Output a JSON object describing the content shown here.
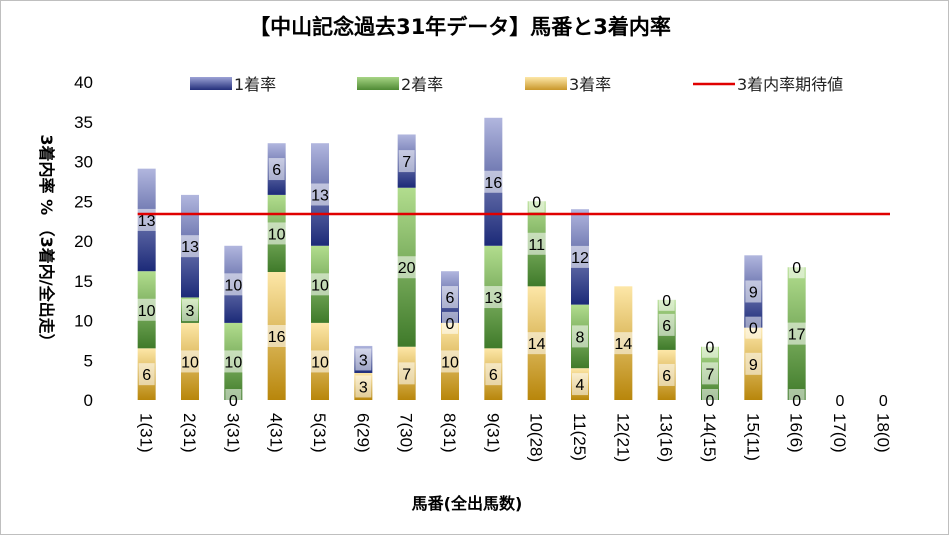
{
  "chart_data": {
    "type": "bar",
    "stacked": true,
    "title": "【中山記念過去31年データ】馬番と3着内率",
    "xlabel": "馬番(全出馬数)",
    "ylabel": "3着内率 %  （3着内/全出走）",
    "ylim": [
      0,
      40
    ],
    "yticks": [
      0,
      5,
      10,
      15,
      20,
      25,
      30,
      35,
      40
    ],
    "categories": [
      "1(31)",
      "2(31)",
      "3(31)",
      "4(31)",
      "5(31)",
      "6(29)",
      "7(30)",
      "8(31)",
      "9(31)",
      "10(28)",
      "11(25)",
      "12(21)",
      "13(16)",
      "14(15)",
      "15(11)",
      "16(6)",
      "17(0)",
      "18(0)"
    ],
    "series": [
      {
        "name": "3着率",
        "color": "#c9a227",
        "values": [
          6.5,
          9.7,
          0,
          16.1,
          9.7,
          3.4,
          6.7,
          9.7,
          6.5,
          14.3,
          4.0,
          14.3,
          6.3,
          0,
          9.1,
          0,
          0,
          0
        ]
      },
      {
        "name": "2着率",
        "color": "#5f9a3c",
        "values": [
          9.7,
          3.2,
          9.7,
          9.7,
          9.7,
          0,
          20.0,
          0,
          12.9,
          10.7,
          8.0,
          0,
          6.3,
          6.7,
          0,
          16.7,
          0,
          0
        ]
      },
      {
        "name": "1着率",
        "color": "#2e3a7a",
        "values": [
          12.9,
          12.9,
          9.7,
          6.5,
          12.9,
          3.4,
          6.7,
          6.5,
          16.1,
          0,
          12.0,
          0,
          0,
          0,
          9.1,
          0,
          0,
          0
        ]
      }
    ],
    "data_labels": [
      [
        "6",
        "10",
        "13"
      ],
      [
        "10",
        "3",
        "13"
      ],
      [
        "0",
        "10",
        "10"
      ],
      [
        "16",
        "10",
        "6"
      ],
      [
        "10",
        "10",
        "13"
      ],
      [
        "3",
        "",
        "3"
      ],
      [
        "7",
        "20",
        "7"
      ],
      [
        "10",
        "0",
        "6"
      ],
      [
        "6",
        "13",
        "16"
      ],
      [
        "14",
        "11",
        "0"
      ],
      [
        "4",
        "8",
        "12"
      ],
      [
        "14",
        "",
        ""
      ],
      [
        "6",
        "6",
        "0"
      ],
      [
        "0",
        "7",
        "0"
      ],
      [
        "9",
        "0",
        "9"
      ],
      [
        "0",
        "17",
        "0"
      ],
      [
        "0",
        "",
        ""
      ],
      [
        "0",
        "",
        ""
      ]
    ],
    "reference_line": {
      "name": "3着内率期待値",
      "value": 23.4,
      "color": "#e00000"
    },
    "legend": [
      "1着率",
      "2着率",
      "3着率",
      "3着内率期待値"
    ],
    "legend_position": "top"
  }
}
